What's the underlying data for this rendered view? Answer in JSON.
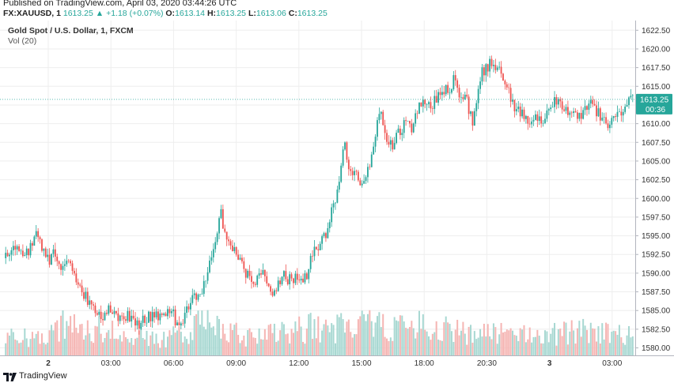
{
  "header": {
    "published": "Published on TradingView.com, April 03, 2020 03:44:26 UTC",
    "symbol": "FX:XAUUSD, 1",
    "last": "1613.25",
    "change": "+1.18 (+0.07%)",
    "o_label": "O:",
    "o_value": "1613.14",
    "h_label": "H:",
    "h_value": "1613.25",
    "l_label": "L:",
    "l_value": "1613.06",
    "c_label": "C:",
    "c_value": "1613.25"
  },
  "chart_title": "Gold Spot / U.S. Dollar, 1, FXCM",
  "volume_label": "Vol (20)",
  "footer": {
    "brand": "TradingView",
    "logo_icon": "tradingview-logo-icon"
  },
  "colors": {
    "up": "#26a69a",
    "down": "#ef5350",
    "vol_up": "#a8d8d2",
    "vol_down": "#f5b5b3",
    "grid": "#eeeeee"
  },
  "chart_data": {
    "type": "candlestick",
    "x_ticks": [
      "2",
      "03:00",
      "06:00",
      "09:00",
      "12:00",
      "15:00",
      "18:00",
      "20:30",
      "3",
      "03:00"
    ],
    "y_ticks": [
      "1622.50",
      "1620.00",
      "1617.50",
      "1615.00",
      "1612.50",
      "1610.00",
      "1607.50",
      "1605.00",
      "1602.50",
      "1600.00",
      "1597.50",
      "1595.00",
      "1592.50",
      "1590.00",
      "1587.50",
      "1585.00",
      "1582.50",
      "1580.00"
    ],
    "ylim": [
      1579.0,
      1623.8
    ],
    "last_price": 1613.25,
    "last_price_label": "1613.25",
    "countdown": "00:36",
    "price_path": [
      [
        0,
        1592
      ],
      [
        1,
        1593.5
      ],
      [
        2,
        1594
      ],
      [
        3,
        1592
      ],
      [
        4,
        1593.5
      ],
      [
        5,
        1595
      ],
      [
        6,
        1593
      ],
      [
        7,
        1591.5
      ],
      [
        8,
        1593
      ],
      [
        9,
        1591
      ],
      [
        10,
        1591.5
      ],
      [
        11,
        1590
      ],
      [
        12,
        1588
      ],
      [
        13,
        1587
      ],
      [
        14,
        1585
      ],
      [
        15,
        1585
      ],
      [
        16,
        1584
      ],
      [
        17,
        1585.5
      ],
      [
        18,
        1584.5
      ],
      [
        19,
        1584
      ],
      [
        20,
        1584.5
      ],
      [
        21,
        1583
      ],
      [
        22,
        1583.5
      ],
      [
        23,
        1584
      ],
      [
        24,
        1584.5
      ],
      [
        25,
        1584
      ],
      [
        26,
        1585
      ],
      [
        27,
        1585
      ],
      [
        28,
        1583
      ],
      [
        29,
        1584
      ],
      [
        30,
        1586
      ],
      [
        31,
        1587
      ],
      [
        32,
        1588
      ],
      [
        33,
        1590.5
      ],
      [
        34,
        1593
      ],
      [
        35,
        1598
      ],
      [
        36,
        1594
      ],
      [
        37,
        1593
      ],
      [
        38,
        1592
      ],
      [
        39,
        1590
      ],
      [
        40,
        1589
      ],
      [
        41,
        1589
      ],
      [
        42,
        1590
      ],
      [
        43,
        1587
      ],
      [
        44,
        1588
      ],
      [
        45,
        1590
      ],
      [
        46,
        1589
      ],
      [
        47,
        1589.5
      ],
      [
        48,
        1589
      ],
      [
        49,
        1590
      ],
      [
        50,
        1593
      ],
      [
        51,
        1594
      ],
      [
        52,
        1595
      ],
      [
        53,
        1598
      ],
      [
        54,
        1601
      ],
      [
        55,
        1608
      ],
      [
        56,
        1603
      ],
      [
        57,
        1604
      ],
      [
        58,
        1601.5
      ],
      [
        59,
        1604
      ],
      [
        60,
        1608
      ],
      [
        61,
        1612
      ],
      [
        62,
        1608
      ],
      [
        63,
        1607
      ],
      [
        64,
        1609
      ],
      [
        65,
        1610
      ],
      [
        66,
        1609
      ],
      [
        67,
        1612
      ],
      [
        68,
        1613
      ],
      [
        69,
        1612
      ],
      [
        70,
        1613.5
      ],
      [
        71,
        1615
      ],
      [
        72,
        1614
      ],
      [
        73,
        1616
      ],
      [
        74,
        1613.5
      ],
      [
        75,
        1613
      ],
      [
        76,
        1610
      ],
      [
        77,
        1616
      ],
      [
        78,
        1617.5
      ],
      [
        79,
        1618
      ],
      [
        80,
        1617
      ],
      [
        81,
        1616.5
      ],
      [
        82,
        1614
      ],
      [
        83,
        1612
      ],
      [
        84,
        1611.5
      ],
      [
        85,
        1610.5
      ],
      [
        86,
        1610.5
      ],
      [
        87,
        1610.5
      ],
      [
        88,
        1611
      ],
      [
        89,
        1613
      ],
      [
        90,
        1613
      ],
      [
        91,
        1612
      ],
      [
        92,
        1611
      ],
      [
        93,
        1611
      ],
      [
        94,
        1611.5
      ],
      [
        95,
        1613
      ],
      [
        96,
        1611.5
      ],
      [
        97,
        1611
      ],
      [
        98,
        1610
      ],
      [
        99,
        1611
      ],
      [
        100,
        1611.5
      ],
      [
        101,
        1612.5
      ],
      [
        102,
        1613.25
      ]
    ],
    "volume_profile": [
      [
        0,
        30
      ],
      [
        5,
        28
      ],
      [
        10,
        55
      ],
      [
        12,
        35
      ],
      [
        15,
        40
      ],
      [
        20,
        30
      ],
      [
        25,
        26
      ],
      [
        30,
        35
      ],
      [
        32,
        55
      ],
      [
        35,
        40
      ],
      [
        40,
        30
      ],
      [
        45,
        35
      ],
      [
        50,
        45
      ],
      [
        53,
        35
      ],
      [
        55,
        50
      ],
      [
        60,
        45
      ],
      [
        65,
        45
      ],
      [
        70,
        50
      ],
      [
        75,
        38
      ],
      [
        80,
        35
      ],
      [
        85,
        30
      ],
      [
        88,
        35
      ],
      [
        90,
        35
      ],
      [
        95,
        40
      ],
      [
        100,
        35
      ],
      [
        102,
        30
      ]
    ]
  }
}
